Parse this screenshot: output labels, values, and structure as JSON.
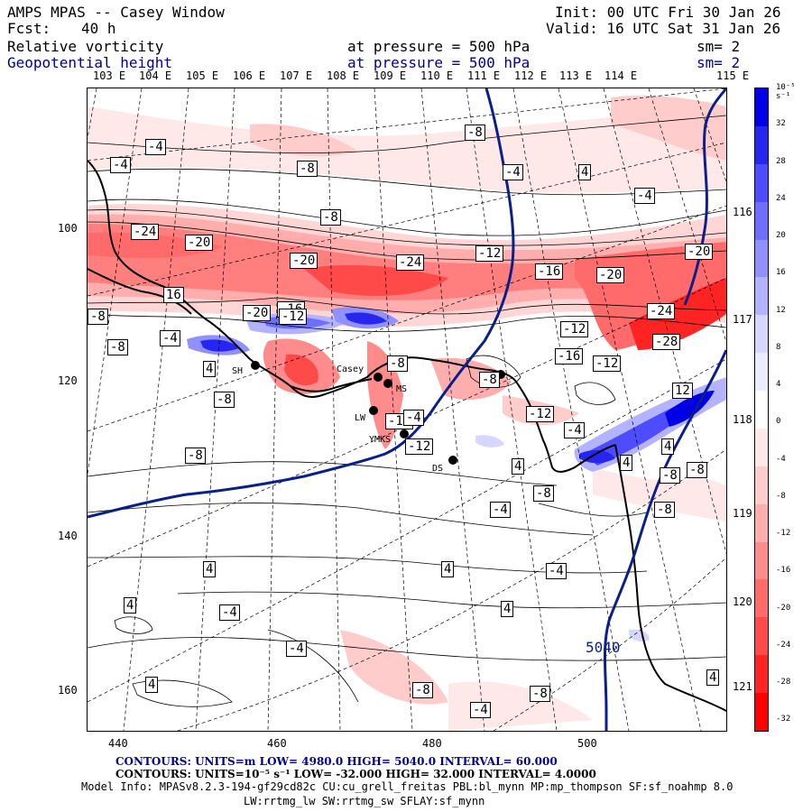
{
  "header": {
    "title": "AMPS MPAS -- Casey Window",
    "forecast_label": "Fcst:",
    "forecast_value": "40 h",
    "init": "Init: 00 UTC Fri 30 Jan 26",
    "valid": "Valid: 16 UTC Sat 31 Jan 26",
    "field1_name": "Relative vorticity",
    "field1_level": "at pressure =  500 hPa",
    "field1_sm": "sm= 2",
    "field2_name": "Geopotential height",
    "field2_level": "at pressure =  500 hPa",
    "field2_sm": "sm= 2"
  },
  "top_longitudes": [
    "103 E",
    "104 E",
    "105 E",
    "106 E",
    "107 E",
    "108 E",
    "109 E",
    "110 E",
    "111 E",
    "112 E",
    "113 E",
    "114 E",
    "115 E"
  ],
  "right_longitudes": [
    "116 E",
    "117 E",
    "118 E",
    "119 E",
    "120 E",
    "121 E"
  ],
  "y_axis": [
    "100",
    "120",
    "140",
    "160"
  ],
  "x_axis": [
    "440",
    "460",
    "480",
    "500"
  ],
  "colorbar": {
    "unit": "10⁻⁵ s⁻¹",
    "ticks": [
      "32",
      "28",
      "24",
      "20",
      "16",
      "12",
      "8",
      "4",
      "0",
      "-4",
      "-8",
      "-12",
      "-16",
      "-20",
      "-24",
      "-28",
      "-32"
    ],
    "colors": [
      "#0000e6",
      "#2626f0",
      "#4d4dff",
      "#6f6fff",
      "#9090ff",
      "#b3b3ff",
      "#d6d6ff",
      "#ececff",
      "#ffffff",
      "#ffe8e8",
      "#ffcccc",
      "#ffadad",
      "#ff8c8c",
      "#ff6b6b",
      "#ff4a4a",
      "#ff2424",
      "#ff0000"
    ]
  },
  "contour_labels": [
    "-4",
    "-4",
    "-8",
    "-8",
    "-8",
    "-4",
    "4",
    "-4",
    "-24",
    "-20",
    "-20",
    "-24",
    "-12",
    "16",
    "-16",
    "-20",
    "-20",
    "-8",
    "-16",
    "-24",
    "-20",
    "-12",
    "-12",
    "-8",
    "-4",
    "-8",
    "-12",
    "-12",
    "-16",
    "-28",
    "-12",
    "-8",
    "4",
    "-8",
    "-4",
    "-12",
    "-8",
    "-8",
    "12",
    "-4",
    "-8",
    "4",
    "-8",
    "-4",
    "-8",
    "4",
    "4",
    "4",
    "4",
    "-4",
    "-4",
    "-4",
    "4",
    "4",
    "4",
    "-8",
    "-4",
    "-8",
    "4"
  ],
  "stations": [
    "SH",
    "Casey",
    "MS",
    "LW",
    "YMKS",
    "DS"
  ],
  "height_contour_label": "5040",
  "footer": {
    "line1": "CONTOURS:  UNITS=m  LOW=  4980.0          HIGH=  5040.0          INTERVAL=   60.000",
    "line2": "CONTOURS:  UNITS=10⁻⁵ s⁻¹  LOW= -32.000          HIGH=  32.000          INTERVAL=   4.0000",
    "line3": "Model Info: MPASv8.2.3-194-gf29cd82c CU:cu_grell_freitas PBL:bl_mynn MP:mp_thompson SF:sf_noahmp 8.0",
    "line4": "LW:rrtmg_lw SW:rrtmg_sw SFLAY:sf_mynn"
  }
}
